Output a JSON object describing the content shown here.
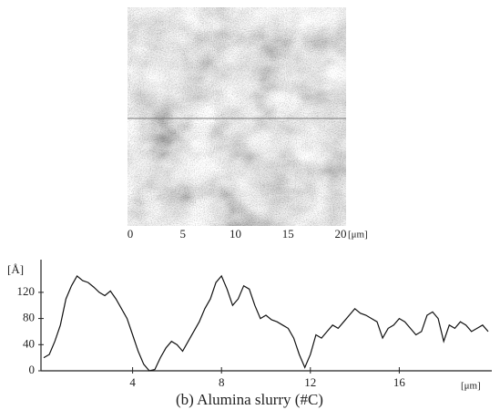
{
  "caption": "(b) Alumina slurry (#C)",
  "chart_data": [
    {
      "type": "image",
      "xlim": [
        0,
        20
      ],
      "xticks": [
        0,
        5,
        10,
        15,
        20
      ],
      "xlabel": "[μm]"
    },
    {
      "type": "line",
      "ylabel": "[Å]",
      "xlabel": "[μm]",
      "color": "#111111",
      "xlim": [
        0,
        20
      ],
      "xticks": [
        4,
        8,
        12,
        16
      ],
      "ylim": [
        0,
        170
      ],
      "yticks": [
        0,
        40,
        80,
        120
      ],
      "x": [
        0,
        0.25,
        0.5,
        0.75,
        1,
        1.25,
        1.5,
        1.75,
        2,
        2.25,
        2.5,
        2.75,
        3,
        3.25,
        3.5,
        3.75,
        4,
        4.25,
        4.5,
        4.75,
        5,
        5.25,
        5.5,
        5.75,
        6,
        6.25,
        6.5,
        6.75,
        7,
        7.25,
        7.5,
        7.75,
        8,
        8.25,
        8.5,
        8.75,
        9,
        9.25,
        9.5,
        9.75,
        10,
        10.25,
        10.5,
        10.75,
        11,
        11.25,
        11.5,
        11.75,
        12,
        12.25,
        12.5,
        12.75,
        13,
        13.25,
        13.5,
        13.75,
        14,
        14.25,
        14.5,
        14.75,
        15,
        15.25,
        15.5,
        15.75,
        16,
        16.25,
        16.5,
        16.75,
        17,
        17.25,
        17.5,
        17.75,
        18,
        18.25,
        18.5,
        18.75,
        19,
        19.25,
        19.5,
        19.75,
        20
      ],
      "values": [
        20,
        25,
        45,
        70,
        110,
        130,
        145,
        138,
        135,
        128,
        120,
        115,
        122,
        110,
        95,
        80,
        55,
        30,
        10,
        0,
        2,
        20,
        35,
        45,
        40,
        30,
        45,
        60,
        75,
        95,
        110,
        135,
        145,
        125,
        100,
        110,
        130,
        125,
        100,
        80,
        85,
        78,
        75,
        70,
        65,
        50,
        25,
        5,
        25,
        55,
        50,
        60,
        70,
        65,
        75,
        85,
        95,
        88,
        85,
        80,
        75,
        50,
        65,
        70,
        80,
        75,
        65,
        55,
        60,
        85,
        90,
        80,
        45,
        70,
        65,
        75,
        70,
        60,
        65,
        70,
        60
      ]
    }
  ]
}
